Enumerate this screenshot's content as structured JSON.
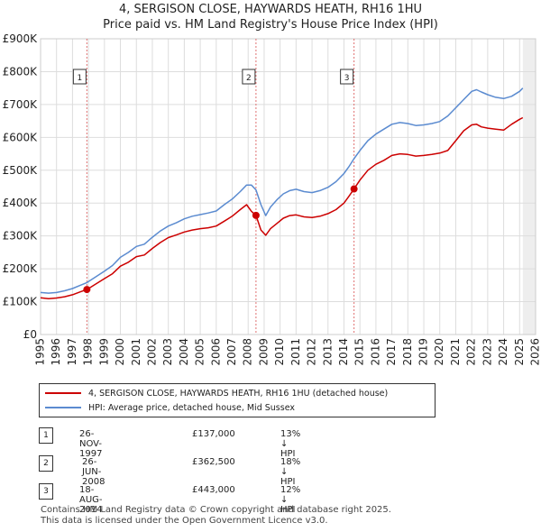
{
  "chart_data": {
    "type": "line",
    "title": "4, SERGISON CLOSE, HAYWARDS HEATH, RH16 1HU",
    "subtitle": "Price paid vs. HM Land Registry's House Price Index (HPI)",
    "xlim": [
      1995,
      2026
    ],
    "ylim": [
      0,
      900000
    ],
    "yticks": [
      0,
      100000,
      200000,
      300000,
      400000,
      500000,
      600000,
      700000,
      800000,
      900000
    ],
    "ytick_labels": [
      "£0",
      "£100K",
      "£200K",
      "£300K",
      "£400K",
      "£500K",
      "£600K",
      "£700K",
      "£800K",
      "£900K"
    ],
    "xticks": [
      1995,
      1996,
      1997,
      1998,
      1999,
      2000,
      2001,
      2002,
      2003,
      2004,
      2005,
      2006,
      2007,
      2008,
      2009,
      2010,
      2011,
      2012,
      2013,
      2014,
      2015,
      2016,
      2017,
      2018,
      2019,
      2020,
      2021,
      2022,
      2023,
      2024,
      2025,
      2026
    ],
    "xtick_labels": [
      "1995",
      "1996",
      "1997",
      "1998",
      "1999",
      "2000",
      "2001",
      "2002",
      "2003",
      "2004",
      "2005",
      "2006",
      "2007",
      "2008",
      "2009",
      "2010",
      "2011",
      "2012",
      "2013",
      "2014",
      "2015",
      "2016",
      "2017",
      "2018",
      "2019",
      "2020",
      "2021",
      "2022",
      "2023",
      "2024",
      "2025",
      "2026"
    ],
    "future_start": 2025.2,
    "grid": true,
    "series": [
      {
        "name": "4, SERGISON CLOSE, HAYWARDS HEATH, RH16 1HU (detached house)",
        "color": "#cc0000",
        "x": [
          1995.0,
          1995.5,
          1996.0,
          1996.5,
          1997.0,
          1997.5,
          1997.9,
          1998.5,
          1999.0,
          1999.5,
          2000.0,
          2000.5,
          2001.0,
          2001.5,
          2002.0,
          2002.5,
          2003.0,
          2003.5,
          2004.0,
          2004.5,
          2005.0,
          2005.5,
          2006.0,
          2006.5,
          2007.0,
          2007.5,
          2007.9,
          2008.2,
          2008.49,
          2008.8,
          2009.1,
          2009.4,
          2009.8,
          2010.2,
          2010.6,
          2011.0,
          2011.5,
          2012.0,
          2012.5,
          2013.0,
          2013.5,
          2014.0,
          2014.3,
          2014.63,
          2015.0,
          2015.5,
          2016.0,
          2016.5,
          2017.0,
          2017.5,
          2018.0,
          2018.5,
          2019.0,
          2019.5,
          2020.0,
          2020.5,
          2021.0,
          2021.5,
          2022.0,
          2022.3,
          2022.6,
          2023.0,
          2023.5,
          2024.0,
          2024.5,
          2025.0,
          2025.2
        ],
        "values": [
          112000,
          109000,
          111000,
          115000,
          121000,
          130000,
          137000,
          155000,
          170000,
          185000,
          208000,
          220000,
          237000,
          242000,
          262000,
          280000,
          295000,
          303000,
          312000,
          318000,
          322000,
          325000,
          330000,
          345000,
          360000,
          380000,
          395000,
          375000,
          362500,
          318000,
          302000,
          322000,
          338000,
          354000,
          362000,
          364000,
          358000,
          356000,
          360000,
          368000,
          380000,
          400000,
          420000,
          443000,
          470000,
          500000,
          518000,
          530000,
          545000,
          550000,
          548000,
          543000,
          545000,
          548000,
          552000,
          560000,
          590000,
          620000,
          638000,
          640000,
          632000,
          628000,
          625000,
          622000,
          640000,
          655000,
          660000
        ]
      },
      {
        "name": "HPI: Average price, detached house, Mid Sussex",
        "color": "#5b8bd0",
        "x": [
          1995.0,
          1995.5,
          1996.0,
          1996.5,
          1997.0,
          1997.5,
          1997.9,
          1998.5,
          1999.0,
          1999.5,
          2000.0,
          2000.5,
          2001.0,
          2001.5,
          2002.0,
          2002.5,
          2003.0,
          2003.5,
          2004.0,
          2004.5,
          2005.0,
          2005.5,
          2006.0,
          2006.5,
          2007.0,
          2007.5,
          2007.9,
          2008.2,
          2008.49,
          2008.8,
          2009.1,
          2009.4,
          2009.8,
          2010.2,
          2010.6,
          2011.0,
          2011.5,
          2012.0,
          2012.5,
          2013.0,
          2013.5,
          2014.0,
          2014.3,
          2014.63,
          2015.0,
          2015.5,
          2016.0,
          2016.5,
          2017.0,
          2017.5,
          2018.0,
          2018.5,
          2019.0,
          2019.5,
          2020.0,
          2020.5,
          2021.0,
          2021.5,
          2022.0,
          2022.3,
          2022.6,
          2023.0,
          2023.5,
          2024.0,
          2024.5,
          2025.0,
          2025.2
        ],
        "values": [
          128000,
          126000,
          128000,
          133000,
          140000,
          150000,
          158000,
          177000,
          193000,
          210000,
          235000,
          250000,
          268000,
          275000,
          296000,
          315000,
          330000,
          340000,
          352000,
          360000,
          365000,
          370000,
          376000,
          395000,
          412000,
          435000,
          455000,
          455000,
          440000,
          395000,
          362000,
          388000,
          410000,
          428000,
          438000,
          442000,
          435000,
          432000,
          438000,
          448000,
          465000,
          490000,
          510000,
          535000,
          560000,
          590000,
          610000,
          625000,
          640000,
          645000,
          642000,
          636000,
          638000,
          642000,
          648000,
          665000,
          690000,
          715000,
          740000,
          745000,
          738000,
          730000,
          722000,
          718000,
          725000,
          740000,
          750000
        ]
      }
    ],
    "sales": [
      {
        "label": "1",
        "x": 1997.9,
        "value": 137000
      },
      {
        "label": "2",
        "x": 2008.49,
        "value": 362500
      },
      {
        "label": "3",
        "x": 2014.63,
        "value": 443000
      }
    ]
  },
  "legend": {
    "property": "4, SERGISON CLOSE, HAYWARDS HEATH, RH16 1HU (detached house)",
    "hpi": "HPI: Average price, detached house, Mid Sussex"
  },
  "transactions": [
    {
      "num": "1",
      "date": "26-NOV-1997",
      "price": "£137,000",
      "hpi": "13% ↓ HPI"
    },
    {
      "num": "2",
      "date": "26-JUN-2008",
      "price": "£362,500",
      "hpi": "18% ↓ HPI"
    },
    {
      "num": "3",
      "date": "18-AUG-2014",
      "price": "£443,000",
      "hpi": "12% ↓ HPI"
    }
  ],
  "footer": {
    "line1": "Contains HM Land Registry data © Crown copyright and database right 2025.",
    "line2": "This data is licensed under the Open Government Licence v3.0."
  }
}
